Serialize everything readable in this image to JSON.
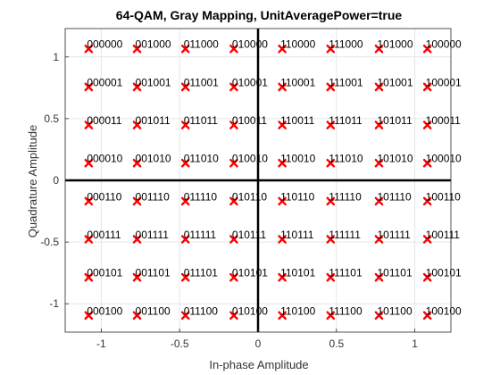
{
  "chart_data": {
    "type": "scatter",
    "title": "64-QAM, Gray Mapping, UnitAveragePower=true",
    "xlabel": "In-phase Amplitude",
    "ylabel": "Quadrature Amplitude",
    "xlim": [
      -1.23,
      1.23
    ],
    "ylim": [
      -1.23,
      1.23
    ],
    "xticks": [
      -1,
      -0.5,
      0,
      0.5,
      1
    ],
    "yticks": [
      -1,
      -0.5,
      0,
      0.5,
      1
    ],
    "xtick_labels": [
      "-1",
      "-0.5",
      "0",
      "0.5",
      "1"
    ],
    "ytick_labels": [
      "-1",
      "-0.5",
      "0",
      "0.5",
      "1"
    ],
    "grid": true,
    "marker": "x",
    "marker_color": "#ff0000",
    "levels": [
      -1.0801,
      -0.7715,
      -0.4629,
      -0.1543,
      0.1543,
      0.4629,
      0.7715,
      1.0801
    ],
    "label_rows": [
      [
        "000000",
        "001000",
        "011000",
        "010000",
        "110000",
        "111000",
        "101000",
        "100000"
      ],
      [
        "000001",
        "001001",
        "011001",
        "010001",
        "110001",
        "111001",
        "101001",
        "100001"
      ],
      [
        "000011",
        "001011",
        "011011",
        "010011",
        "110011",
        "111011",
        "101011",
        "100011"
      ],
      [
        "000010",
        "001010",
        "011010",
        "010010",
        "110010",
        "111010",
        "101010",
        "100010"
      ],
      [
        "000110",
        "001110",
        "011110",
        "010110",
        "110110",
        "111110",
        "101110",
        "100110"
      ],
      [
        "000111",
        "001111",
        "011111",
        "010111",
        "110111",
        "111111",
        "101111",
        "100111"
      ],
      [
        "000101",
        "001101",
        "011101",
        "010101",
        "110101",
        "111101",
        "101101",
        "100101"
      ],
      [
        "000100",
        "001100",
        "011100",
        "010100",
        "110100",
        "111100",
        "101100",
        "100100"
      ]
    ]
  }
}
